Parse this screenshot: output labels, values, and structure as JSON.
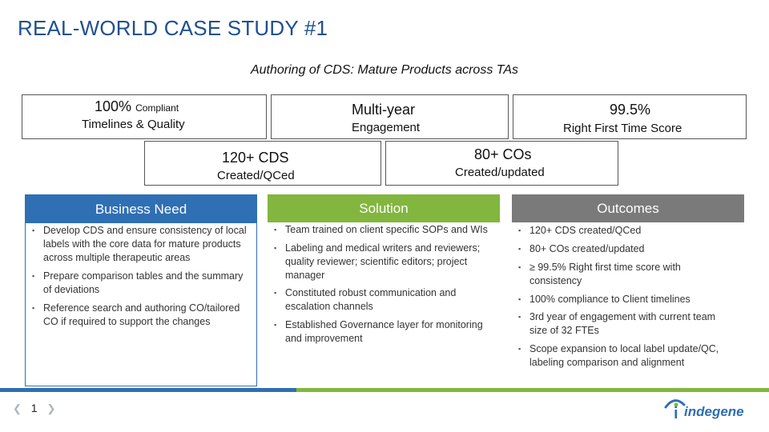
{
  "title": "REAL-WORLD CASE STUDY #1",
  "subtitle": "Authoring of CDS: Mature Products across TAs",
  "metrics": {
    "compliant": {
      "value": "100%",
      "suffix": "Compliant",
      "label": "Timelines & Quality"
    },
    "multiyear": {
      "value": "Multi-year",
      "label": "Engagement"
    },
    "rft": {
      "value": "99.5%",
      "label": "Right First Time Score"
    },
    "cds": {
      "value": "120+ CDS",
      "label": "Created/QCed"
    },
    "cos": {
      "value": "80+ COs",
      "label": "Created/updated"
    }
  },
  "panels": {
    "need": {
      "heading": "Business Need",
      "color": "#2f6fb3",
      "items": [
        "Develop CDS and ensure consistency of local labels with the core data for mature products across multiple therapeutic areas",
        "Prepare comparison tables and the summary of deviations",
        "Reference search and authoring CO/tailored CO if required to support the changes"
      ]
    },
    "solution": {
      "heading": "Solution",
      "color": "#82b63e",
      "items": [
        "Team trained on client specific SOPs and WIs",
        "Labeling and medical writers and reviewers; quality reviewer; scientific editors; project manager",
        "Constituted robust communication and escalation channels",
        "Established Governance layer for monitoring and improvement"
      ]
    },
    "outcomes": {
      "heading": "Outcomes",
      "color": "#7a7a7a",
      "items": [
        "120+ CDS created/QCed",
        "80+ COs created/updated",
        "≥ 99.5% Right first time score with consistency",
        "100% compliance to Client timelines",
        "3rd year of engagement with current team size of 32 FTEs",
        "Scope expansion to local label update/QC, labeling comparison and alignment"
      ]
    }
  },
  "footer": {
    "page_number": "1",
    "logo_text": "indegene",
    "logo_mark": "i"
  },
  "colors": {
    "title": "#1f4f8f",
    "bar_blue": "#2f6fb3",
    "bar_green": "#82b63e"
  }
}
